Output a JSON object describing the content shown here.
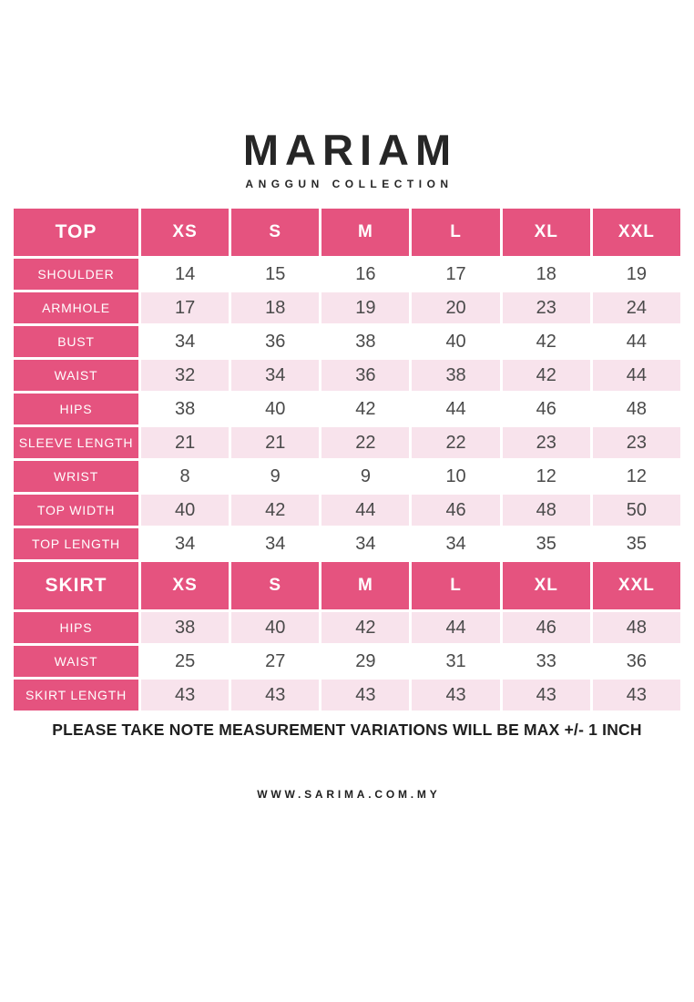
{
  "brand": {
    "name": "MARIAM",
    "collection": "ANGGUN COLLECTION"
  },
  "colors": {
    "pink": "#E5537F",
    "light_pink": "#F8E3EC",
    "value_text": "#4A4A4A",
    "dark_text": "#262626"
  },
  "top_table": {
    "header": {
      "label": "TOP",
      "sizes": [
        "XS",
        "S",
        "M",
        "L",
        "XL",
        "XXL"
      ]
    },
    "rows": [
      {
        "label": "SHOULDER",
        "values": [
          "14",
          "15",
          "16",
          "17",
          "18",
          "19"
        ]
      },
      {
        "label": "ARMHOLE",
        "values": [
          "17",
          "18",
          "19",
          "20",
          "23",
          "24"
        ]
      },
      {
        "label": "BUST",
        "values": [
          "34",
          "36",
          "38",
          "40",
          "42",
          "44"
        ]
      },
      {
        "label": "WAIST",
        "values": [
          "32",
          "34",
          "36",
          "38",
          "42",
          "44"
        ]
      },
      {
        "label": "HIPS",
        "values": [
          "38",
          "40",
          "42",
          "44",
          "46",
          "48"
        ]
      },
      {
        "label": "SLEEVE LENGTH",
        "values": [
          "21",
          "21",
          "22",
          "22",
          "23",
          "23"
        ]
      },
      {
        "label": "WRIST",
        "values": [
          "8",
          "9",
          "9",
          "10",
          "12",
          "12"
        ]
      },
      {
        "label": "TOP WIDTH",
        "values": [
          "40",
          "42",
          "44",
          "46",
          "48",
          "50"
        ]
      },
      {
        "label": "TOP LENGTH",
        "values": [
          "34",
          "34",
          "34",
          "34",
          "35",
          "35"
        ]
      }
    ]
  },
  "skirt_table": {
    "header": {
      "label": "SKIRT",
      "sizes": [
        "XS",
        "S",
        "M",
        "L",
        "XL",
        "XXL"
      ]
    },
    "rows": [
      {
        "label": "HIPS",
        "values": [
          "38",
          "40",
          "42",
          "44",
          "46",
          "48"
        ]
      },
      {
        "label": "WAIST",
        "values": [
          "25",
          "27",
          "29",
          "31",
          "33",
          "36"
        ]
      },
      {
        "label": "SKIRT LENGTH",
        "values": [
          "43",
          "43",
          "43",
          "43",
          "43",
          "43"
        ]
      }
    ]
  },
  "note": "PLEASE TAKE NOTE MEASUREMENT VARIATIONS WILL BE MAX +/- 1 INCH",
  "website": "WWW.SARIMA.COM.MY"
}
